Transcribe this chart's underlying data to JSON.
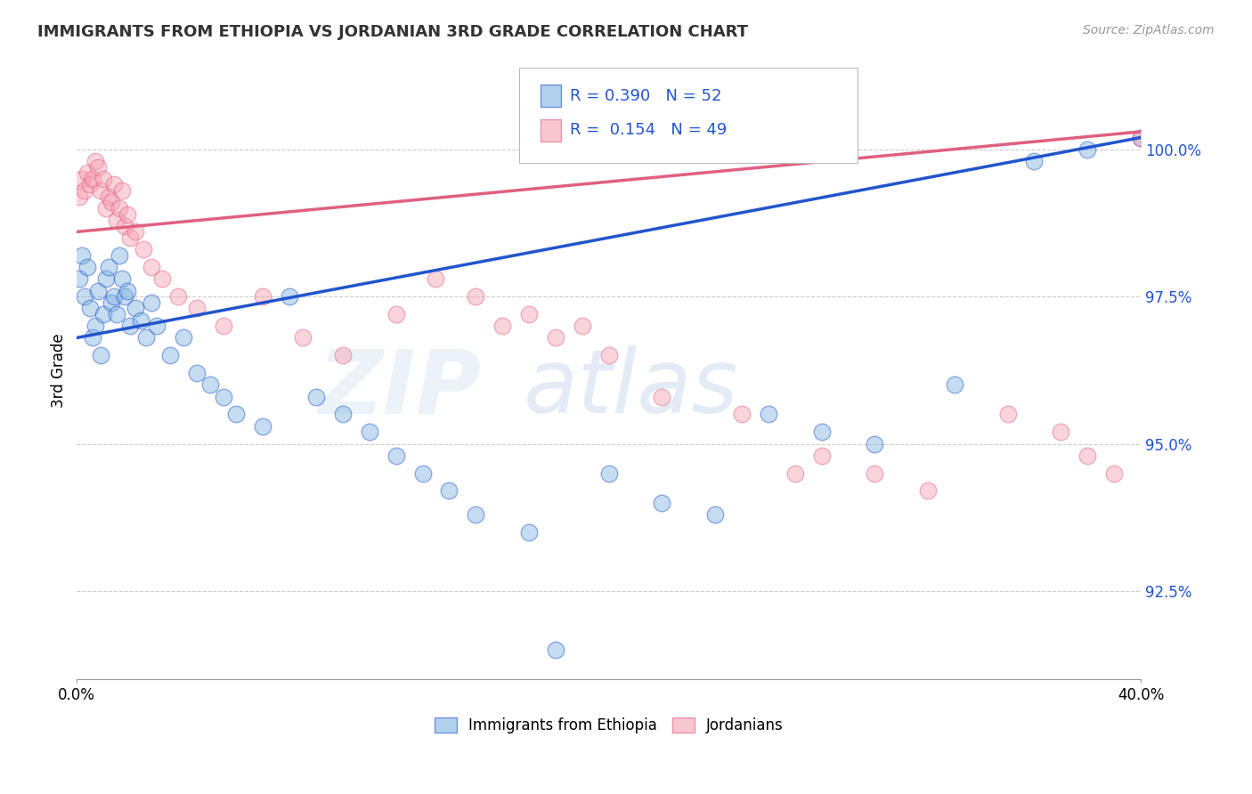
{
  "title": "IMMIGRANTS FROM ETHIOPIA VS JORDANIAN 3RD GRADE CORRELATION CHART",
  "source": "Source: ZipAtlas.com",
  "ylabel": "3rd Grade",
  "xlim": [
    0.0,
    40.0
  ],
  "ylim": [
    91.0,
    101.5
  ],
  "ytick_vals": [
    92.5,
    95.0,
    97.5,
    100.0
  ],
  "legend_blue_r": "0.390",
  "legend_blue_n": "52",
  "legend_pink_r": "0.154",
  "legend_pink_n": "49",
  "blue_color": "#7fb3e0",
  "pink_color": "#f4a0b0",
  "blue_line_color": "#2255cc",
  "pink_line_color": "#e06080",
  "blue_scatter_x": [
    0.1,
    0.2,
    0.3,
    0.4,
    0.5,
    0.6,
    0.7,
    0.8,
    0.9,
    1.0,
    1.1,
    1.2,
    1.3,
    1.4,
    1.5,
    1.6,
    1.7,
    1.8,
    1.9,
    2.0,
    2.2,
    2.4,
    2.6,
    2.8,
    3.0,
    3.5,
    4.0,
    4.5,
    5.0,
    5.5,
    6.0,
    7.0,
    8.0,
    9.0,
    10.0,
    11.0,
    12.0,
    13.0,
    14.0,
    15.0,
    17.0,
    18.0,
    20.0,
    22.0,
    24.0,
    26.0,
    28.0,
    30.0,
    33.0,
    36.0,
    38.0,
    40.0
  ],
  "blue_scatter_y": [
    97.8,
    98.2,
    97.5,
    98.0,
    97.3,
    96.8,
    97.0,
    97.6,
    96.5,
    97.2,
    97.8,
    98.0,
    97.4,
    97.5,
    97.2,
    98.2,
    97.8,
    97.5,
    97.6,
    97.0,
    97.3,
    97.1,
    96.8,
    97.4,
    97.0,
    96.5,
    96.8,
    96.2,
    96.0,
    95.8,
    95.5,
    95.3,
    97.5,
    95.8,
    95.5,
    95.2,
    94.8,
    94.5,
    94.2,
    93.8,
    93.5,
    91.5,
    94.5,
    94.0,
    93.8,
    95.5,
    95.2,
    95.0,
    96.0,
    99.8,
    100.0,
    100.2
  ],
  "pink_scatter_x": [
    0.1,
    0.2,
    0.3,
    0.4,
    0.5,
    0.6,
    0.7,
    0.8,
    0.9,
    1.0,
    1.1,
    1.2,
    1.3,
    1.4,
    1.5,
    1.6,
    1.7,
    1.8,
    1.9,
    2.0,
    2.2,
    2.5,
    2.8,
    3.2,
    3.8,
    4.5,
    5.5,
    7.0,
    8.5,
    10.0,
    12.0,
    13.5,
    15.0,
    16.0,
    17.0,
    18.0,
    19.0,
    20.0,
    22.0,
    25.0,
    27.0,
    28.0,
    30.0,
    32.0,
    35.0,
    37.0,
    38.0,
    39.0,
    40.0
  ],
  "pink_scatter_y": [
    99.2,
    99.5,
    99.3,
    99.6,
    99.4,
    99.5,
    99.8,
    99.7,
    99.3,
    99.5,
    99.0,
    99.2,
    99.1,
    99.4,
    98.8,
    99.0,
    99.3,
    98.7,
    98.9,
    98.5,
    98.6,
    98.3,
    98.0,
    97.8,
    97.5,
    97.3,
    97.0,
    97.5,
    96.8,
    96.5,
    97.2,
    97.8,
    97.5,
    97.0,
    97.2,
    96.8,
    97.0,
    96.5,
    95.8,
    95.5,
    94.5,
    94.8,
    94.5,
    94.2,
    95.5,
    95.2,
    94.8,
    94.5,
    100.2
  ]
}
